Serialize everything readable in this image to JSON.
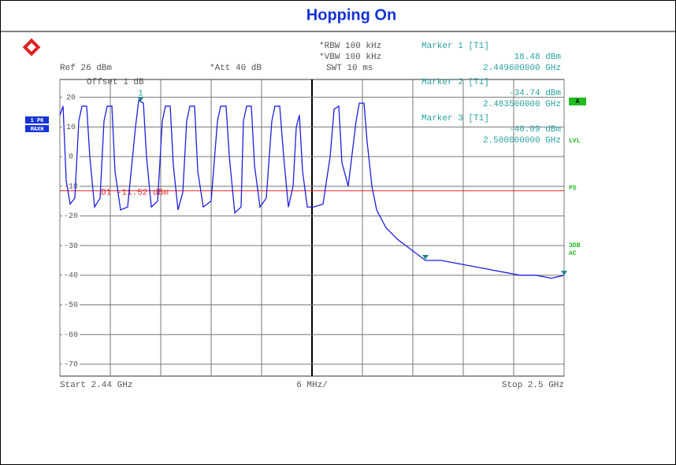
{
  "header": {
    "title": "Hopping On"
  },
  "instrument": {
    "ref": "Ref 26 dBm",
    "offset": "Offset 1 dB",
    "att": "*Att 40 dB",
    "rbw": "*RBW 100 kHz",
    "vbw": "*VBW 100 kHz",
    "swt": "SWT 10 ms",
    "trace_mode": [
      "1 PK",
      "MAXH"
    ],
    "side_labels": [
      "A",
      "LVL",
      "PS",
      "3DB",
      "AC"
    ],
    "start": "Start 2.44 GHz",
    "span_div": "6 MHz/",
    "stop": "Stop 2.5 GHz"
  },
  "chart_data": {
    "type": "line",
    "xlim": [
      2.44,
      2.5
    ],
    "xticks": [
      2.44,
      2.446,
      2.452,
      2.458,
      2.464,
      2.47,
      2.476,
      2.482,
      2.488,
      2.494,
      2.5
    ],
    "ylim": [
      -74,
      26
    ],
    "yticks": [
      20,
      10,
      0,
      -10,
      -20,
      -30,
      -40,
      -50,
      -60,
      -70
    ],
    "grid": true,
    "x": [
      2.44,
      2.44038,
      2.44075,
      2.44122,
      2.44178,
      2.44225,
      2.44263,
      2.44319,
      2.44356,
      2.44413,
      2.44478,
      2.44525,
      2.44563,
      2.44619,
      2.44656,
      2.44722,
      2.44806,
      2.449,
      2.44938,
      2.44994,
      2.45031,
      2.45088,
      2.45163,
      2.45219,
      2.45256,
      2.45313,
      2.4535,
      2.45406,
      2.45463,
      2.45509,
      2.45547,
      2.45603,
      2.45641,
      2.45706,
      2.458,
      2.45875,
      2.45913,
      2.45978,
      2.46016,
      2.46081,
      2.46156,
      2.46184,
      2.46222,
      2.46278,
      2.46316,
      2.46381,
      2.46456,
      2.46522,
      2.46559,
      2.46616,
      2.46663,
      2.46719,
      2.46775,
      2.46813,
      2.4685,
      2.46888,
      2.46944,
      2.47019,
      2.47131,
      2.47216,
      2.47263,
      2.47319,
      2.47356,
      2.47431,
      2.47525,
      2.47563,
      2.47619,
      2.47656,
      2.47713,
      2.47769,
      2.47881,
      2.48022,
      2.48163,
      2.4835,
      2.48538,
      2.48725,
      2.48913,
      2.491,
      2.49288,
      2.49475,
      2.49663,
      2.4985,
      2.5
    ],
    "series": [
      {
        "color": "#1e1ee0",
        "values": [
          14,
          17,
          -8,
          -16,
          -14,
          12,
          17,
          17,
          0,
          -17,
          -14,
          12,
          17,
          17,
          -5,
          -18,
          -17,
          10,
          19,
          18,
          0,
          -17,
          -15,
          12,
          17,
          17,
          -3,
          -18,
          -12,
          12,
          17,
          17,
          -5,
          -17,
          -15,
          12,
          17,
          17,
          0,
          -19,
          -17,
          12,
          17,
          17,
          -3,
          -17,
          -14,
          12,
          17,
          17,
          0,
          -17,
          -10,
          10,
          14,
          -5,
          -17,
          -17,
          -16,
          0,
          16,
          17,
          -2,
          -10,
          12,
          18,
          18,
          5,
          -10,
          -18,
          -24,
          -28,
          -31,
          -35,
          -35,
          -36,
          -37,
          -38,
          -39,
          -40,
          -40,
          -41,
          -40
        ]
      }
    ],
    "display_line": {
      "label": "D1 -11.52 dBm",
      "value": -11.52,
      "color": "#e03030"
    },
    "markers": [
      {
        "name": "Marker 1 [T1]",
        "level": 18.48,
        "level_label": "18.48 dBm",
        "freq": 2.4496,
        "freq_label": "2.449600000 GHz",
        "plot_label": "1"
      },
      {
        "name": "Marker 2 [T1]",
        "level": -34.74,
        "level_label": "-34.74 dBm",
        "freq": 2.4835,
        "freq_label": "2.483500000 GHz"
      },
      {
        "name": "Marker 3 [T1]",
        "level": -40.09,
        "level_label": "-40.09 dBm",
        "freq": 2.5,
        "freq_label": "2.500000000 GHz"
      }
    ]
  }
}
